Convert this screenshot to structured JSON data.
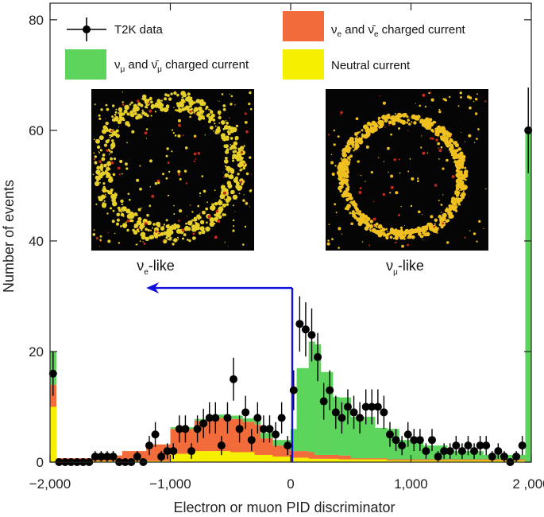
{
  "chart_data": {
    "type": "bar",
    "stacked": true,
    "xlabel": "Electron or muon PID discriminator",
    "ylabel": "Number of events",
    "xlim": [
      -2000,
      2000
    ],
    "ylim": [
      0,
      83
    ],
    "x_ticks": [
      -2000,
      -1000,
      0,
      1000,
      2000
    ],
    "x_tick_labels": [
      "−2,000",
      "−1,000",
      "0",
      "1,000",
      "2 ,000"
    ],
    "y_ticks": [
      0,
      20,
      40,
      60,
      80
    ],
    "y_tick_labels": [
      "0",
      "20",
      "40",
      "60",
      "80"
    ],
    "bin_width": 50,
    "series": [
      {
        "name": "nc",
        "label": "Neutral current",
        "color": "#f5f000",
        "bins": [
          [
            -2000,
            -1950,
            10
          ],
          [
            -1950,
            -1000,
            0.2
          ],
          [
            -1000,
            -800,
            1.5
          ],
          [
            -800,
            -500,
            2.0
          ],
          [
            -500,
            -300,
            1.8
          ],
          [
            -300,
            -150,
            1.3
          ],
          [
            -150,
            0,
            1.0
          ],
          [
            0,
            150,
            0.8
          ],
          [
            150,
            400,
            0.6
          ],
          [
            400,
            800,
            0.5
          ],
          [
            800,
            1950,
            0.3
          ],
          [
            1950,
            2000,
            0
          ]
        ]
      },
      {
        "name": "nue_cc",
        "label": "νe and ν̄e charged current",
        "color": "#f26b3a",
        "bins": [
          [
            -2000,
            -1950,
            4
          ],
          [
            -1950,
            -1600,
            0.5
          ],
          [
            -1600,
            -1400,
            1.0
          ],
          [
            -1400,
            -1200,
            1.8
          ],
          [
            -1200,
            -1000,
            3.0
          ],
          [
            -1000,
            -800,
            4.5
          ],
          [
            -800,
            -600,
            5.5
          ],
          [
            -600,
            -400,
            6.0
          ],
          [
            -400,
            -250,
            5.5
          ],
          [
            -250,
            -150,
            3.0
          ],
          [
            -150,
            0,
            2.0
          ],
          [
            0,
            200,
            1.2
          ],
          [
            200,
            500,
            0.7
          ],
          [
            500,
            1950,
            0.2
          ],
          [
            1950,
            2000,
            0
          ]
        ]
      },
      {
        "name": "numu_cc",
        "label": "νμ and ν̄μ charged current",
        "color": "#5dd55d",
        "bins": [
          [
            -2000,
            -1950,
            6
          ],
          [
            -1950,
            -1000,
            0
          ],
          [
            -1000,
            -600,
            0.3
          ],
          [
            -600,
            -300,
            0.6
          ],
          [
            -300,
            0,
            1.0
          ],
          [
            0,
            50,
            4
          ],
          [
            50,
            150,
            15
          ],
          [
            150,
            250,
            20
          ],
          [
            250,
            350,
            15
          ],
          [
            350,
            500,
            10.5
          ],
          [
            500,
            700,
            7.5
          ],
          [
            700,
            900,
            5.5
          ],
          [
            900,
            1100,
            3.5
          ],
          [
            1100,
            1300,
            2.5
          ],
          [
            1300,
            1600,
            1.5
          ],
          [
            1600,
            1950,
            0.8
          ],
          [
            1950,
            2000,
            60
          ]
        ]
      }
    ],
    "data_series": {
      "name": "T2K data",
      "x": [
        -1975,
        -1925,
        -1875,
        -1825,
        -1775,
        -1725,
        -1675,
        -1625,
        -1575,
        -1525,
        -1475,
        -1425,
        -1375,
        -1325,
        -1275,
        -1225,
        -1175,
        -1125,
        -1075,
        -1025,
        -975,
        -925,
        -875,
        -825,
        -775,
        -725,
        -675,
        -625,
        -575,
        -525,
        -475,
        -425,
        -375,
        -325,
        -275,
        -225,
        -175,
        -125,
        -75,
        -25,
        25,
        75,
        125,
        175,
        225,
        275,
        325,
        375,
        425,
        475,
        525,
        575,
        625,
        675,
        725,
        775,
        825,
        875,
        925,
        975,
        1025,
        1075,
        1125,
        1175,
        1225,
        1275,
        1325,
        1375,
        1425,
        1475,
        1525,
        1575,
        1625,
        1675,
        1725,
        1775,
        1825,
        1875,
        1925,
        1975
      ],
      "y": [
        16,
        0,
        0,
        0,
        0,
        0,
        0,
        1,
        1,
        1,
        1,
        0,
        0,
        0,
        1,
        0,
        3,
        5,
        1,
        2,
        2,
        6,
        6,
        2,
        6,
        7,
        8,
        8,
        3,
        8,
        15,
        6,
        9,
        4,
        8,
        6,
        6,
        5,
        8,
        3,
        13,
        25,
        24,
        23,
        19,
        11,
        13,
        9,
        8,
        10,
        9,
        8,
        10,
        10,
        10,
        9,
        5,
        4,
        3,
        5,
        4,
        4,
        2,
        4,
        1,
        2,
        2,
        3,
        2,
        3,
        2,
        3,
        3,
        1,
        2,
        1,
        0,
        1,
        3,
        60
      ]
    },
    "legend": {
      "placement": "top",
      "entries": [
        "T2K data",
        "νe and ν̄e charged current",
        "νμ and ν̄μ charged current",
        "Neutral current"
      ]
    },
    "annotations": {
      "cut_value": 0,
      "arrow_direction": "left",
      "arrow_y_value": 31.5,
      "arrow_end_x_value": -1200
    },
    "insets": [
      {
        "name": "electron-like event display",
        "caption": "νe-like",
        "caption_main": "ν",
        "caption_sub": "e",
        "caption_suffix": "-like"
      },
      {
        "name": "muon-like event display",
        "caption": "νμ-like",
        "caption_main": "ν",
        "caption_sub": "μ",
        "caption_suffix": "-like"
      }
    ],
    "colors": {
      "frame": "#222222",
      "data": "#000000",
      "arrow": "#1010e0",
      "inset_bg": "#050505",
      "ring_e": "#e6cf2a",
      "ring_mu": "#f0c020",
      "noise_red": "#c62a1a"
    }
  }
}
